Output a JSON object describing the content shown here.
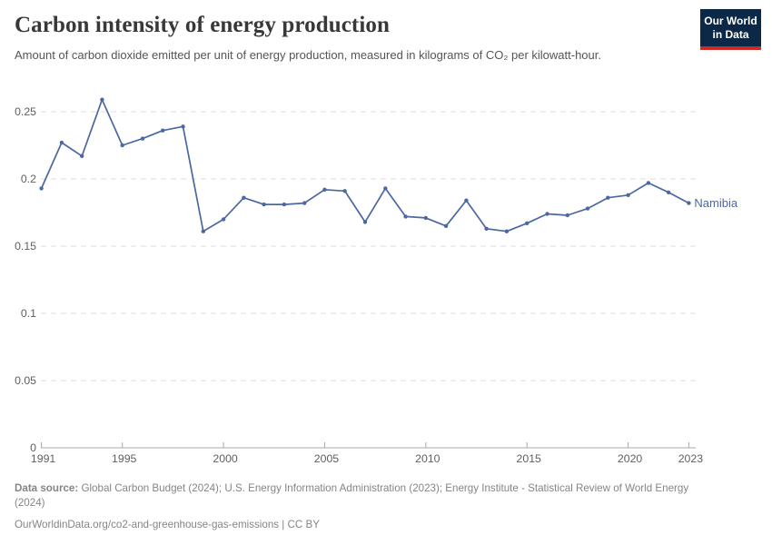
{
  "header": {
    "title": "Carbon intensity of energy production",
    "subtitle": "Amount of carbon dioxide emitted per unit of energy production, measured in kilograms of CO₂ per kilowatt-hour.",
    "logo": {
      "line1": "Our World",
      "line2": "in Data"
    }
  },
  "chart_data": {
    "type": "line",
    "title": "Carbon intensity of energy production",
    "xlabel": "",
    "ylabel": "",
    "x": [
      1991,
      1992,
      1993,
      1994,
      1995,
      1996,
      1997,
      1998,
      1999,
      2000,
      2001,
      2002,
      2003,
      2004,
      2005,
      2006,
      2007,
      2008,
      2009,
      2010,
      2011,
      2012,
      2013,
      2014,
      2015,
      2016,
      2017,
      2018,
      2019,
      2020,
      2021,
      2022,
      2023
    ],
    "series": [
      {
        "name": "Namibia",
        "color": "#4b68a2",
        "values": [
          0.193,
          0.227,
          0.217,
          0.259,
          0.225,
          0.23,
          0.236,
          0.239,
          0.161,
          0.17,
          0.186,
          0.181,
          0.181,
          0.182,
          0.192,
          0.191,
          0.168,
          0.193,
          0.172,
          0.171,
          0.165,
          0.184,
          0.163,
          0.161,
          0.167,
          0.174,
          0.173,
          0.178,
          0.186,
          0.188,
          0.197,
          0.19,
          0.182
        ]
      }
    ],
    "xlim": [
      1991,
      2023
    ],
    "ylim": [
      0,
      0.26
    ],
    "xticks": [
      1991,
      1995,
      2000,
      2005,
      2010,
      2015,
      2020,
      2023
    ],
    "yticks": [
      0,
      0.05,
      0.1,
      0.15,
      0.2,
      0.25
    ],
    "grid": "horizontal-dashed",
    "legend_position": "end-of-line-label"
  },
  "footer": {
    "source_label": "Data source:",
    "source_text": " Global Carbon Budget (2024); U.S. Energy Information Administration (2023); Energy Institute - Statistical Review of World Energy (2024)",
    "url_text": "OurWorldinData.org/co2-and-greenhouse-gas-emissions | CC BY"
  },
  "colors": {
    "line": "#4b68a2",
    "title_text": "#383838",
    "subtitle_text": "#555555",
    "axis_text": "#5f5f5f",
    "gridline": "#dedede",
    "axis_line": "#a8a8a8",
    "footer_text": "#858585",
    "logo_bg": "#0b2947",
    "logo_bar": "#cc2a24"
  }
}
